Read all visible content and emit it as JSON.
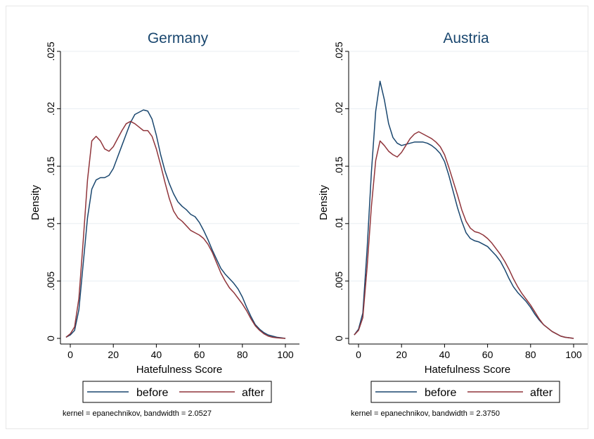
{
  "colors": {
    "background": "#ffffff",
    "title": "#1a476f",
    "before": "#1a476f",
    "after": "#90353b",
    "grid": "#e8eef2",
    "axis": "#000000"
  },
  "legend_labels": {
    "before": "before",
    "after": "after"
  },
  "chart_data": [
    {
      "type": "line",
      "title": "Germany",
      "xlabel": "Hatefulness Score",
      "ylabel": "Density",
      "xlim": [
        -2,
        101
      ],
      "ylim": [
        0,
        0.025
      ],
      "xticks": [
        0,
        20,
        40,
        60,
        80,
        100
      ],
      "xtick_labels": [
        "0",
        "20",
        "40",
        "60",
        "80",
        "100"
      ],
      "yticks": [
        0,
        0.005,
        0.01,
        0.015,
        0.02,
        0.025
      ],
      "ytick_labels": [
        "0",
        ".005",
        ".01",
        ".015",
        ".02",
        ".025"
      ],
      "grid": true,
      "legend_position": "bottom",
      "note": "kernel = epanechnikov, bandwidth = 2.0527",
      "series": [
        {
          "name": "before",
          "x": [
            -2,
            0,
            2,
            4,
            6,
            8,
            10,
            12,
            14,
            16,
            18,
            20,
            22,
            24,
            26,
            28,
            30,
            32,
            34,
            36,
            38,
            40,
            42,
            44,
            46,
            48,
            50,
            52,
            54,
            56,
            58,
            60,
            62,
            64,
            66,
            68,
            70,
            72,
            74,
            76,
            78,
            80,
            82,
            84,
            86,
            88,
            90,
            92,
            94,
            96,
            98,
            100
          ],
          "y": [
            0.0001,
            0.0003,
            0.0007,
            0.0025,
            0.0065,
            0.0105,
            0.013,
            0.0138,
            0.014,
            0.014,
            0.0142,
            0.0148,
            0.0158,
            0.0168,
            0.0178,
            0.0188,
            0.0195,
            0.0197,
            0.0199,
            0.0198,
            0.0191,
            0.0177,
            0.016,
            0.0146,
            0.0135,
            0.0126,
            0.0119,
            0.0115,
            0.0112,
            0.0108,
            0.0106,
            0.0101,
            0.0094,
            0.0086,
            0.0077,
            0.0069,
            0.0061,
            0.0056,
            0.0052,
            0.0048,
            0.0043,
            0.0036,
            0.0027,
            0.0019,
            0.0012,
            0.0008,
            0.0005,
            0.0003,
            0.0002,
            0.0001,
            5e-05,
            0.0
          ]
        },
        {
          "name": "after",
          "x": [
            -2,
            0,
            2,
            4,
            6,
            8,
            10,
            12,
            14,
            16,
            18,
            20,
            22,
            24,
            26,
            28,
            30,
            32,
            34,
            36,
            38,
            40,
            42,
            44,
            46,
            48,
            50,
            52,
            54,
            56,
            58,
            60,
            62,
            64,
            66,
            68,
            70,
            72,
            74,
            76,
            78,
            80,
            82,
            84,
            86,
            88,
            90,
            92,
            94,
            96,
            98,
            100
          ],
          "y": [
            0.0001,
            0.0004,
            0.001,
            0.0035,
            0.0085,
            0.0138,
            0.0172,
            0.0176,
            0.0172,
            0.0165,
            0.0163,
            0.0167,
            0.0174,
            0.0181,
            0.0187,
            0.0189,
            0.0187,
            0.0184,
            0.0181,
            0.0181,
            0.0176,
            0.0165,
            0.0151,
            0.0136,
            0.0122,
            0.0111,
            0.0105,
            0.0102,
            0.0098,
            0.0094,
            0.0092,
            0.009,
            0.0087,
            0.0082,
            0.0075,
            0.0066,
            0.0057,
            0.005,
            0.0044,
            0.004,
            0.0035,
            0.003,
            0.0024,
            0.0017,
            0.0011,
            0.0007,
            0.0004,
            0.0002,
            0.0001,
            5e-05,
            2e-05,
            0.0
          ]
        }
      ]
    },
    {
      "type": "line",
      "title": "Austria",
      "xlabel": "Hatefulness Score",
      "ylabel": "Density",
      "xlim": [
        -2,
        101
      ],
      "ylim": [
        0,
        0.025
      ],
      "xticks": [
        0,
        20,
        40,
        60,
        80,
        100
      ],
      "xtick_labels": [
        "0",
        "20",
        "40",
        "60",
        "80",
        "100"
      ],
      "yticks": [
        0,
        0.005,
        0.01,
        0.015,
        0.02,
        0.025
      ],
      "ytick_labels": [
        "0",
        ".005",
        ".01",
        ".015",
        ".02",
        ".025"
      ],
      "grid": true,
      "legend_position": "bottom",
      "note": "kernel = epanechnikov, bandwidth = 2.3750",
      "series": [
        {
          "name": "before",
          "x": [
            -2,
            0,
            2,
            4,
            6,
            8,
            10,
            12,
            14,
            16,
            18,
            20,
            22,
            24,
            26,
            28,
            30,
            32,
            34,
            36,
            38,
            40,
            42,
            44,
            46,
            48,
            50,
            52,
            54,
            56,
            58,
            60,
            62,
            64,
            66,
            68,
            70,
            72,
            74,
            76,
            78,
            80,
            82,
            84,
            86,
            88,
            90,
            92,
            94,
            96,
            98,
            100
          ],
          "y": [
            0.0003,
            0.0008,
            0.0022,
            0.0078,
            0.0145,
            0.0198,
            0.0224,
            0.0208,
            0.0187,
            0.0175,
            0.017,
            0.0168,
            0.0169,
            0.017,
            0.0171,
            0.0171,
            0.0171,
            0.017,
            0.0168,
            0.0165,
            0.0161,
            0.0154,
            0.0142,
            0.0128,
            0.0114,
            0.0102,
            0.0092,
            0.0087,
            0.0085,
            0.0084,
            0.0082,
            0.008,
            0.0076,
            0.0072,
            0.0067,
            0.006,
            0.0052,
            0.0045,
            0.004,
            0.0036,
            0.0032,
            0.0027,
            0.0021,
            0.0016,
            0.0012,
            0.0009,
            0.0006,
            0.0004,
            0.0002,
            0.0001,
            5e-05,
            0.0
          ]
        },
        {
          "name": "after",
          "x": [
            -2,
            0,
            2,
            4,
            6,
            8,
            10,
            12,
            14,
            16,
            18,
            20,
            22,
            24,
            26,
            28,
            30,
            32,
            34,
            36,
            38,
            40,
            42,
            44,
            46,
            48,
            50,
            52,
            54,
            56,
            58,
            60,
            62,
            64,
            66,
            68,
            70,
            72,
            74,
            76,
            78,
            80,
            82,
            84,
            86,
            88,
            90,
            92,
            94,
            96,
            98,
            100
          ],
          "y": [
            0.0003,
            0.0007,
            0.0018,
            0.0062,
            0.0115,
            0.0155,
            0.0172,
            0.0168,
            0.0163,
            0.016,
            0.0158,
            0.0162,
            0.0168,
            0.0174,
            0.0178,
            0.018,
            0.0178,
            0.0176,
            0.0174,
            0.0171,
            0.0167,
            0.016,
            0.0149,
            0.0137,
            0.0125,
            0.0112,
            0.0102,
            0.0096,
            0.0093,
            0.0092,
            0.009,
            0.0087,
            0.0083,
            0.0078,
            0.0073,
            0.0067,
            0.006,
            0.0052,
            0.0045,
            0.0039,
            0.0034,
            0.0029,
            0.0023,
            0.0017,
            0.0012,
            0.0009,
            0.0006,
            0.0004,
            0.0002,
            0.0001,
            5e-05,
            0.0
          ]
        }
      ]
    }
  ]
}
